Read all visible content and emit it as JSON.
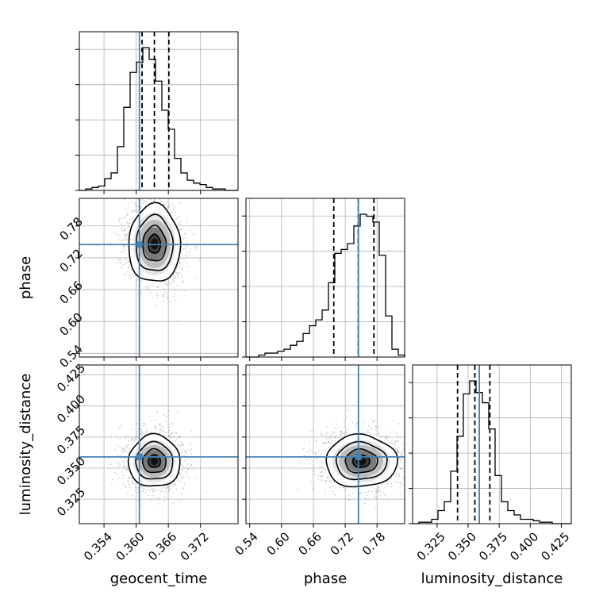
{
  "chart_data": {
    "type": "corner",
    "parameters": [
      "geocent_time",
      "phase",
      "luminosity_distance"
    ],
    "grid": true,
    "truth_color": "#4682b4",
    "truths": {
      "geocent_time": 0.3606,
      "phase": 0.7449,
      "luminosity_distance": 0.359
    },
    "quantiles": {
      "geocent_time": [
        0.3611,
        0.3634,
        0.3661
      ],
      "phase": [
        0.6985,
        0.7446,
        0.7741
      ],
      "luminosity_distance": [
        0.3415,
        0.3554,
        0.3675
      ]
    },
    "ranges": {
      "geocent_time": [
        0.3494,
        0.379
      ],
      "phase": [
        0.533,
        0.832
      ],
      "luminosity_distance": [
        0.3053,
        0.433
      ]
    },
    "ticks": {
      "geocent_time": [
        "0.354",
        "0.360",
        "0.366",
        "0.372"
      ],
      "phase": [
        "0.54",
        "0.60",
        "0.66",
        "0.72",
        "0.78"
      ],
      "luminosity_distance": [
        "0.325",
        "0.350",
        "0.375",
        "0.400",
        "0.425"
      ]
    },
    "histograms": {
      "geocent_time": {
        "edges": [
          0.3494,
          0.379
        ],
        "counts": [
          0,
          1,
          2,
          3,
          8,
          12,
          30,
          57,
          81,
          88,
          98,
          90,
          75,
          55,
          42,
          22,
          12,
          7,
          5,
          4,
          2,
          1,
          1,
          0,
          0
        ]
      },
      "phase": {
        "edges": [
          0.533,
          0.832
        ],
        "counts": [
          0,
          0,
          1,
          2,
          2,
          3,
          4,
          6,
          8,
          12,
          16,
          19,
          24,
          38,
          53,
          55,
          58,
          67,
          73,
          72,
          69,
          52,
          21,
          4,
          1
        ]
      },
      "luminosity_distance": {
        "edges": [
          0.3053,
          0.433
        ],
        "counts": [
          0,
          1,
          1,
          3,
          9,
          15,
          36,
          60,
          89,
          98,
          90,
          83,
          65,
          33,
          15,
          9,
          6,
          3,
          3,
          2,
          1,
          1,
          0,
          0,
          0
        ]
      }
    },
    "density_2d": [
      {
        "x": "geocent_time",
        "y": "phase",
        "center": [
          0.3634,
          0.746
        ],
        "sd": [
          0.0023,
          0.035
        ],
        "rho": 0.1
      },
      {
        "x": "geocent_time",
        "y": "luminosity_distance",
        "center": [
          0.3634,
          0.3555
        ],
        "sd": [
          0.0023,
          0.01
        ],
        "rho": 0.0
      },
      {
        "x": "phase",
        "y": "luminosity_distance",
        "center": [
          0.75,
          0.3555
        ],
        "sd": [
          0.032,
          0.01
        ],
        "rho": 0.05
      }
    ]
  }
}
